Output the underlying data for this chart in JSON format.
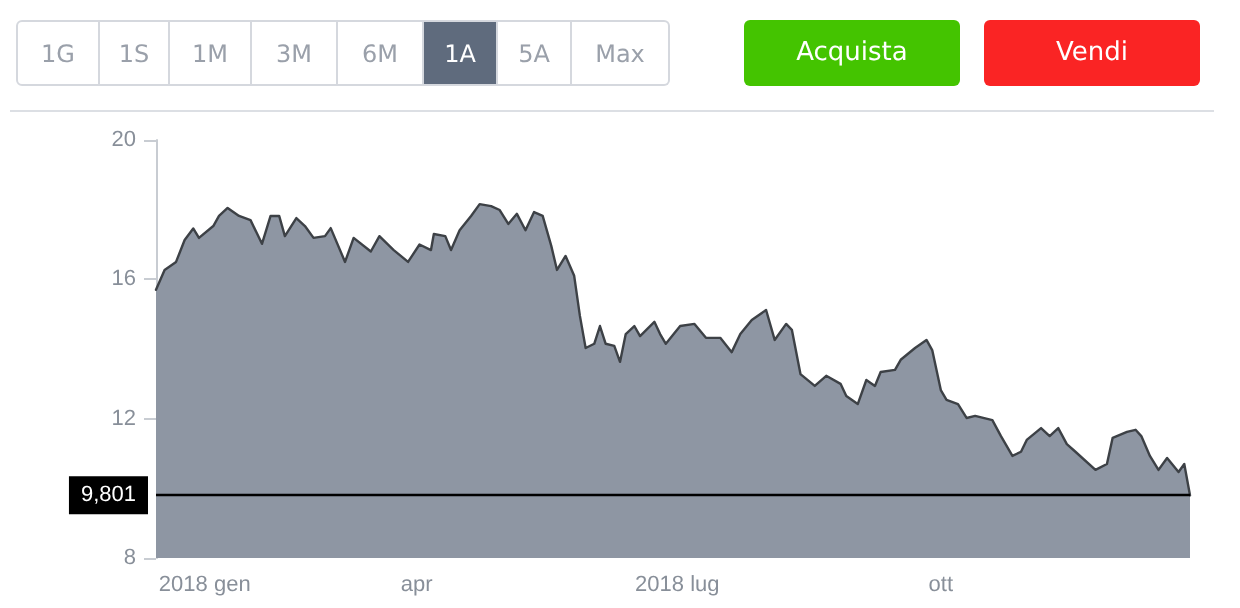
{
  "chart_data": {
    "type": "area",
    "annotations": [
      "1G",
      "1S",
      "1M",
      "3M",
      "6M",
      "1A",
      "5A",
      "Max",
      "Acquista",
      "Vendi"
    ],
    "x": [
      "2017-12-31",
      "2018-01-03",
      "2018-01-07",
      "2018-01-10",
      "2018-01-13",
      "2018-01-15",
      "2018-01-20",
      "2018-01-22",
      "2018-01-25",
      "2018-01-29",
      "2018-02-02",
      "2018-02-06",
      "2018-02-09",
      "2018-02-12",
      "2018-02-14",
      "2018-02-18",
      "2018-02-21",
      "2018-02-24",
      "2018-02-28",
      "2018-03-02",
      "2018-03-07",
      "2018-03-10",
      "2018-03-16",
      "2018-03-19",
      "2018-03-24",
      "2018-03-29",
      "2018-04-02",
      "2018-04-06",
      "2018-04-07",
      "2018-04-11",
      "2018-04-13",
      "2018-04-16",
      "2018-04-20",
      "2018-04-23",
      "2018-04-27",
      "2018-04-30",
      "2018-05-03",
      "2018-05-06",
      "2018-05-09",
      "2018-05-12",
      "2018-05-15",
      "2018-05-18",
      "2018-05-20",
      "2018-05-23",
      "2018-05-26",
      "2018-05-28",
      "2018-05-30",
      "2018-06-02",
      "2018-06-04",
      "2018-06-06",
      "2018-06-09",
      "2018-06-11",
      "2018-06-13",
      "2018-06-16",
      "2018-06-18",
      "2018-06-23",
      "2018-06-25",
      "2018-06-27",
      "2018-07-02",
      "2018-07-07",
      "2018-07-11",
      "2018-07-16",
      "2018-07-20",
      "2018-07-23",
      "2018-07-27",
      "2018-08-01",
      "2018-08-04",
      "2018-08-08",
      "2018-08-10",
      "2018-08-13",
      "2018-08-18",
      "2018-08-22",
      "2018-08-27",
      "2018-08-29",
      "2018-09-02",
      "2018-09-05",
      "2018-09-08",
      "2018-09-10",
      "2018-09-15",
      "2018-09-17",
      "2018-09-22",
      "2018-09-26",
      "2018-09-28",
      "2018-10-01",
      "2018-10-03",
      "2018-10-07",
      "2018-10-10",
      "2018-10-13",
      "2018-10-19",
      "2018-10-22",
      "2018-10-26",
      "2018-10-29",
      "2018-10-31",
      "2018-11-05",
      "2018-11-08",
      "2018-11-11",
      "2018-11-14",
      "2018-11-17",
      "2018-11-24",
      "2018-11-28",
      "2018-11-30",
      "2018-12-05",
      "2018-12-08",
      "2018-12-10",
      "2018-12-13",
      "2018-12-16",
      "2018-12-19",
      "2018-12-23",
      "2018-12-25",
      "2018-12-27"
    ],
    "series": [
      {
        "color": "#8e96a3",
        "values": [
          15.7,
          16.27,
          16.5,
          17.13,
          17.46,
          17.19,
          17.53,
          17.82,
          18.05,
          17.82,
          17.7,
          17.02,
          17.82,
          17.82,
          17.24,
          17.76,
          17.53,
          17.19,
          17.24,
          17.47,
          16.5,
          17.19,
          16.8,
          17.24,
          16.84,
          16.5,
          17.0,
          16.84,
          17.3,
          17.24,
          16.84,
          17.41,
          17.82,
          18.16,
          18.1,
          17.99,
          17.59,
          17.88,
          17.41,
          17.93,
          17.82,
          16.96,
          16.27,
          16.67,
          16.1,
          14.95,
          14.03,
          14.15,
          14.66,
          14.15,
          14.09,
          13.63,
          14.43,
          14.66,
          14.37,
          14.78,
          14.43,
          14.15,
          14.66,
          14.72,
          14.32,
          14.32,
          13.91,
          14.43,
          14.83,
          15.12,
          14.26,
          14.72,
          14.55,
          13.28,
          12.94,
          13.23,
          13.0,
          12.65,
          12.42,
          13.11,
          12.94,
          13.34,
          13.4,
          13.69,
          14.03,
          14.26,
          13.97,
          12.82,
          12.54,
          12.42,
          12.02,
          12.08,
          11.96,
          11.5,
          10.93,
          11.05,
          11.39,
          11.73,
          11.5,
          11.73,
          11.27,
          11.05,
          10.53,
          10.7,
          11.45,
          11.62,
          11.68,
          11.5,
          10.93,
          10.53,
          10.87,
          10.47,
          10.7,
          9.801
        ]
      }
    ],
    "xlim": [
      "2017-12-31",
      "2018-12-27"
    ],
    "xticks": [
      {
        "value": "2018-01-01",
        "label": "2018 gen"
      },
      {
        "value": "2018-04-01",
        "label": "apr"
      },
      {
        "value": "2018-07-01",
        "label": "2018 lug"
      },
      {
        "value": "2018-10-01",
        "label": "ott"
      }
    ],
    "ylim": [
      8,
      20
    ],
    "yticks": [
      8,
      12,
      16,
      20
    ],
    "ref_lines": [
      {
        "axis": "y",
        "value": 9.801,
        "label": "9,801",
        "color": "#000000"
      }
    ],
    "grid": false,
    "marker": "none",
    "line_style": "solid"
  }
}
